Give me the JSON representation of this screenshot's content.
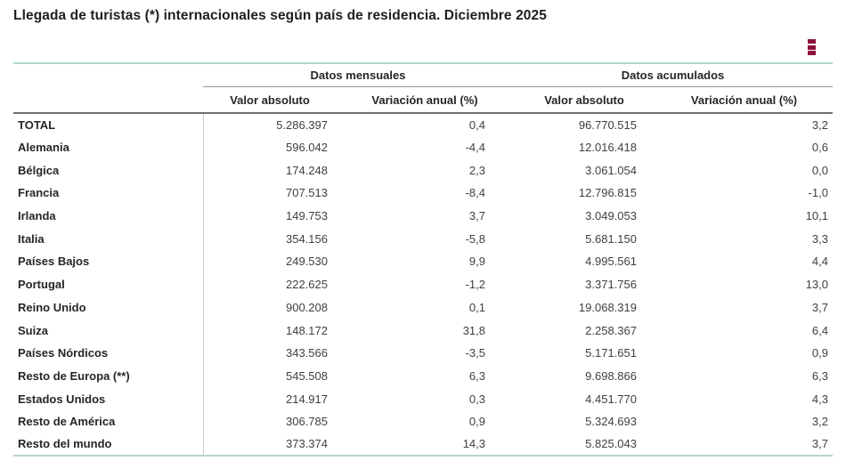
{
  "title": "Llegada de turistas (*) internacionales según país de residencia. Diciembre 2025",
  "toolbar": {
    "menu_icon": "kebab-menu-icon"
  },
  "colors": {
    "accent_maroon": "#8C143C",
    "table_border_teal": "#B2D4D0",
    "header_rule_dark_gray": "#6E6E6E",
    "group_rule_gray": "#9A9A9A",
    "row_divider_gray": "#C9C9C9",
    "title_text": "#1F1F1F",
    "cell_text": "#404040"
  },
  "chart_data": {
    "type": "table",
    "title": "Llegada de turistas (*) internacionales según país de residencia. Diciembre 2025",
    "column_groups": [
      {
        "label": "Datos mensuales",
        "span": 2
      },
      {
        "label": "Datos acumulados",
        "span": 2
      }
    ],
    "columns": [
      "Valor absoluto",
      "Variación anual (%)",
      "Valor absoluto",
      "Variación anual (%)"
    ],
    "row_header": "",
    "rows": [
      {
        "label": "TOTAL",
        "values": [
          "5.286.397",
          "0,4",
          "96.770.515",
          "3,2"
        ]
      },
      {
        "label": "Alemania",
        "values": [
          "596.042",
          "-4,4",
          "12.016.418",
          "0,6"
        ]
      },
      {
        "label": "Bélgica",
        "values": [
          "174.248",
          "2,3",
          "3.061.054",
          "0,0"
        ]
      },
      {
        "label": "Francia",
        "values": [
          "707.513",
          "-8,4",
          "12.796.815",
          "-1,0"
        ]
      },
      {
        "label": "Irlanda",
        "values": [
          "149.753",
          "3,7",
          "3.049.053",
          "10,1"
        ]
      },
      {
        "label": "Italia",
        "values": [
          "354.156",
          "-5,8",
          "5.681.150",
          "3,3"
        ]
      },
      {
        "label": "Países Bajos",
        "values": [
          "249.530",
          "9,9",
          "4.995.561",
          "4,4"
        ]
      },
      {
        "label": "Portugal",
        "values": [
          "222.625",
          "-1,2",
          "3.371.756",
          "13,0"
        ]
      },
      {
        "label": "Reino Unido",
        "values": [
          "900.208",
          "0,1",
          "19.068.319",
          "3,7"
        ]
      },
      {
        "label": "Suiza",
        "values": [
          "148.172",
          "31,8",
          "2.258.367",
          "6,4"
        ]
      },
      {
        "label": "Países Nórdicos",
        "values": [
          "343.566",
          "-3,5",
          "5.171.651",
          "0,9"
        ]
      },
      {
        "label": "Resto de Europa (**)",
        "values": [
          "545.508",
          "6,3",
          "9.698.866",
          "6,3"
        ]
      },
      {
        "label": "Estados Unidos",
        "values": [
          "214.917",
          "0,3",
          "4.451.770",
          "4,3"
        ]
      },
      {
        "label": "Resto de América",
        "values": [
          "306.785",
          "0,9",
          "5.324.693",
          "3,2"
        ]
      },
      {
        "label": "Resto del mundo",
        "values": [
          "373.374",
          "14,3",
          "5.825.043",
          "3,7"
        ]
      }
    ]
  }
}
